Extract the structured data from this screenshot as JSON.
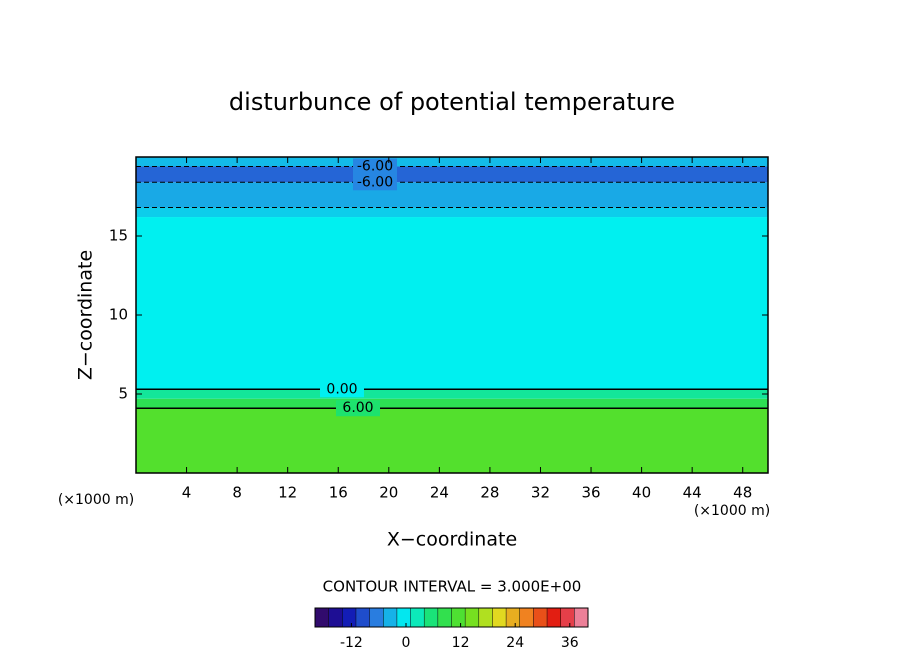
{
  "chart_data": {
    "type": "contour",
    "title": "disturbunce of potential temperature",
    "x_label": "X−coordinate",
    "y_label": "Z−coordinate",
    "x_unit": "(×1000 m)",
    "y_unit": "(×1000 m)",
    "xlim": [
      0,
      50
    ],
    "ylim": [
      0,
      20
    ],
    "xticks": [
      4,
      8,
      12,
      16,
      20,
      24,
      28,
      32,
      36,
      40,
      44,
      48
    ],
    "yticks": [
      5,
      10,
      15
    ],
    "field": {
      "z": [
        0,
        4.1,
        4.7,
        5.3,
        16.2,
        16.8,
        18.4,
        19.4,
        20
      ],
      "values": [
        12,
        8,
        4,
        0,
        -2,
        -4,
        -8,
        -3
      ]
    },
    "contours": [
      {
        "value": 6,
        "label": "6.00",
        "z": 4.1
      },
      {
        "value": 0,
        "label": "0.00",
        "z": 5.3
      },
      {
        "value": -3,
        "label": null,
        "z": 16.8
      },
      {
        "value": -6,
        "label": "-6.00",
        "z": 18.4
      },
      {
        "value": -6,
        "label": "-6.00",
        "z": 19.4
      }
    ],
    "colorbar": {
      "lim": [
        -20,
        40
      ],
      "ticks": [
        -12,
        0,
        12,
        24,
        36
      ],
      "contour_interval": {
        "value": 3,
        "label": "CONTOUR INTERVAL = 3.000E+00"
      },
      "colors": [
        "#3a0a5a",
        "#1010b0",
        "#2a7ae0",
        "#00f0f0",
        "#20e060",
        "#60e020",
        "#e0e020",
        "#f08020",
        "#e01010",
        "#f0a0c0"
      ]
    }
  }
}
